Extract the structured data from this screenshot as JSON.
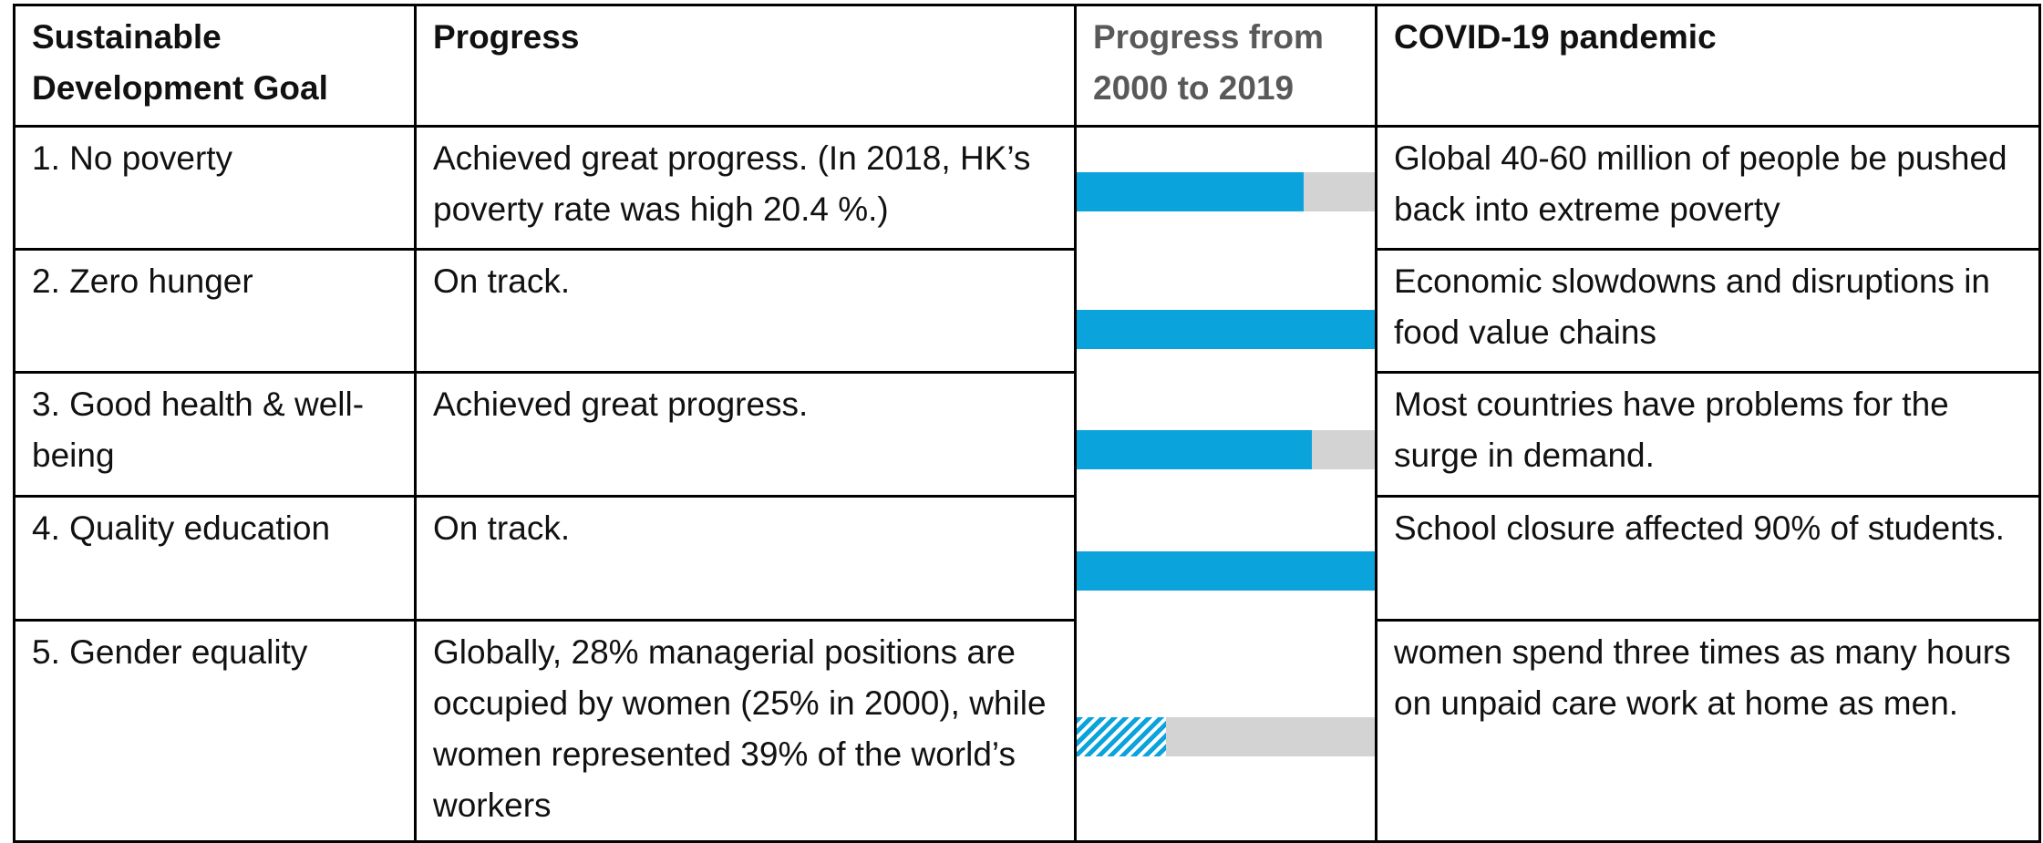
{
  "table": {
    "header": [
      "Sustainable Development Goal",
      "Progress",
      "Progress from 2000 to 2019",
      "COVID-19 pandemic"
    ],
    "bar_max": 100,
    "bar_color": "#0aa3dc",
    "track_color": "#d3d3d3",
    "rows": [
      {
        "goal": "1. No poverty",
        "progress": "Achieved great progress.  (In 2018, HK’s poverty rate was high 20.4 %.)",
        "bar": 76,
        "hatched": false,
        "covid": "Global 40-60 million of people be pushed back into extreme poverty"
      },
      {
        "goal": "2. Zero hunger",
        "progress": "On track.",
        "bar": 100,
        "hatched": false,
        "covid": "Economic slowdowns and disruptions in food value chains"
      },
      {
        "goal": "3. Good health & well-being",
        "progress": "Achieved great progress.",
        "bar": 79,
        "hatched": false,
        "covid": "Most countries have problems for the surge in demand."
      },
      {
        "goal": "4. Quality education",
        "progress": "On track.",
        "bar": 100,
        "hatched": false,
        "covid": "School closure affected 90% of students."
      },
      {
        "goal": "5. Gender equality",
        "progress": "Globally, 28% managerial positions are occupied by women (25% in 2000), while women represented 39% of the world’s workers",
        "bar": 30,
        "hatched": true,
        "covid": "women spend three times as many hours on unpaid care work at home as men."
      }
    ]
  }
}
